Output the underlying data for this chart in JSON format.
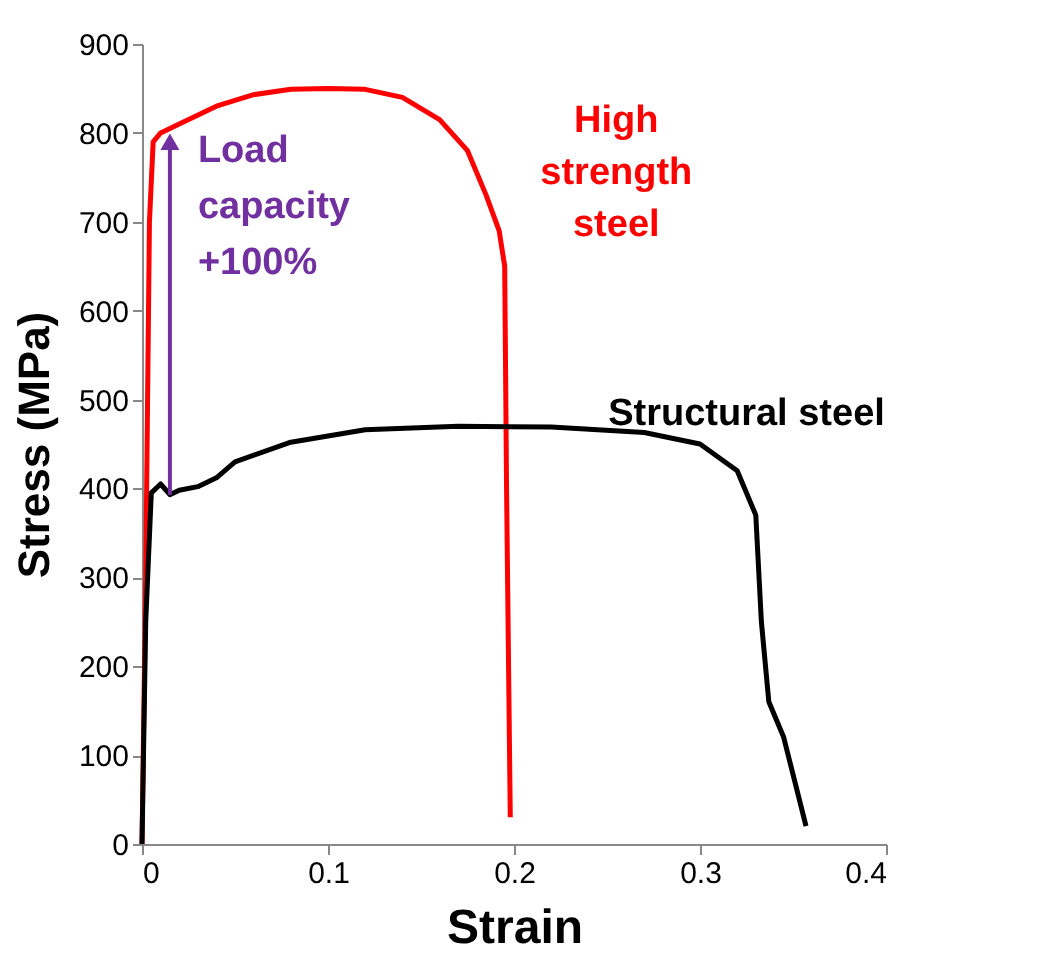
{
  "chart_data": {
    "type": "line",
    "xlabel": "Strain",
    "ylabel": "Stress (MPa)",
    "xlim": [
      0,
      0.4
    ],
    "ylim": [
      0,
      900
    ],
    "xticks": [
      0,
      0.1,
      0.2,
      0.3,
      0.4
    ],
    "yticks": [
      0,
      100,
      200,
      300,
      400,
      500,
      600,
      700,
      800,
      900
    ],
    "grid": false,
    "legend": false,
    "marker": "none",
    "line_style": "solid",
    "series": [
      {
        "name": "High strength steel",
        "color": "#ff0000",
        "x": [
          0,
          0.002,
          0.004,
          0.006,
          0.01,
          0.02,
          0.04,
          0.06,
          0.08,
          0.1,
          0.12,
          0.14,
          0.16,
          0.175,
          0.185,
          0.192,
          0.195,
          0.196,
          0.198
        ],
        "values": [
          0,
          300,
          700,
          790,
          800,
          810,
          830,
          843,
          849,
          850,
          849,
          840,
          815,
          780,
          730,
          690,
          650,
          400,
          30
        ]
      },
      {
        "name": "Structural steel",
        "color": "#000000",
        "x": [
          0,
          0.002,
          0.005,
          0.01,
          0.015,
          0.02,
          0.03,
          0.04,
          0.05,
          0.08,
          0.12,
          0.17,
          0.22,
          0.27,
          0.3,
          0.32,
          0.33,
          0.333,
          0.337,
          0.345,
          0.357
        ],
        "values": [
          0,
          250,
          395,
          405,
          393,
          398,
          402,
          412,
          430,
          452,
          466,
          470,
          469,
          463,
          450,
          420,
          370,
          250,
          160,
          120,
          20
        ]
      }
    ],
    "annotations": [
      {
        "text": "Load capacity +100%",
        "x": 0.015,
        "y": 790
      }
    ]
  }
}
